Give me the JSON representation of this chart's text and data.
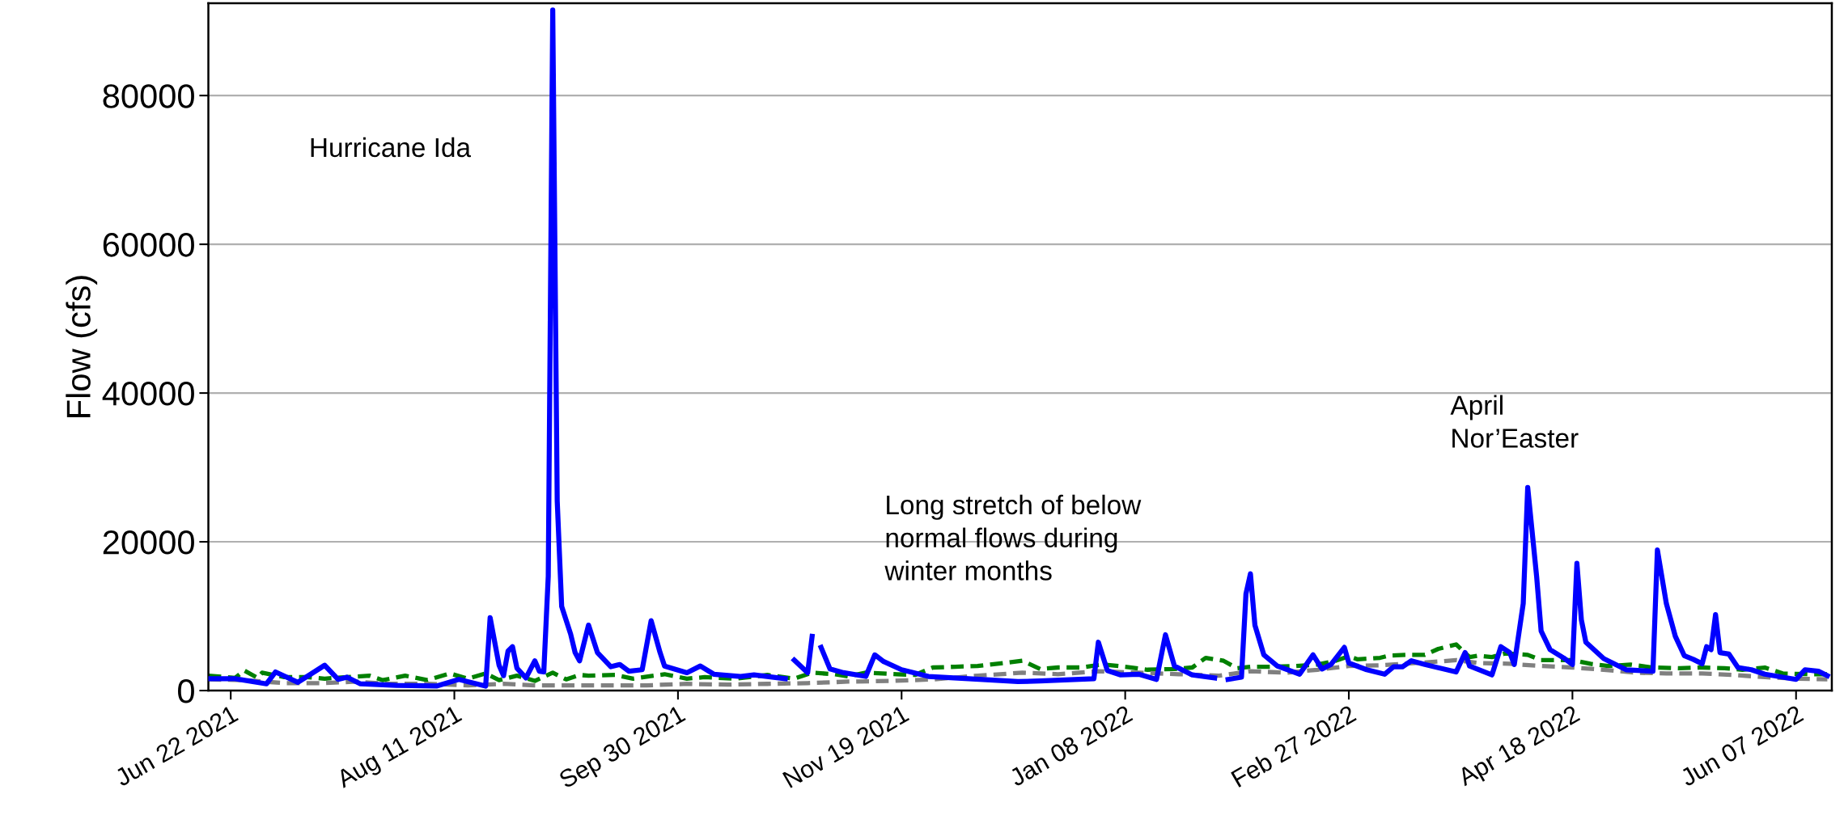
{
  "chart_data": {
    "type": "line",
    "ylabel": "Flow (cfs)",
    "xlim": [
      "2021-06-17",
      "2022-06-15"
    ],
    "ylim": [
      0,
      92400
    ],
    "xticks": [
      {
        "value": "2021-06-22",
        "label": "Jun 22 2021"
      },
      {
        "value": "2021-08-11",
        "label": "Aug 11 2021"
      },
      {
        "value": "2021-09-30",
        "label": "Sep 30 2021"
      },
      {
        "value": "2021-11-19",
        "label": "Nov 19 2021"
      },
      {
        "value": "2022-01-08",
        "label": "Jan 08 2022"
      },
      {
        "value": "2022-02-27",
        "label": "Feb 27 2022"
      },
      {
        "value": "2022-04-18",
        "label": "Apr 18 2022"
      },
      {
        "value": "2022-06-07",
        "label": "Jun 07 2022"
      }
    ],
    "yticks": [
      0,
      20000,
      40000,
      60000,
      80000
    ],
    "grid": "y",
    "marker": "none",
    "series": [
      {
        "color": "#0000ff",
        "line_style": "solid",
        "x": [
          "2021-06-17",
          "2021-06-23",
          "2021-06-30",
          "2021-07-02",
          "2021-07-07",
          "2021-07-13",
          "2021-07-16",
          "2021-07-18",
          "2021-07-21",
          "2021-07-29",
          "2021-08-07",
          "2021-08-12",
          "2021-08-18",
          "2021-08-19",
          "2021-08-21",
          "2021-08-22",
          "2021-08-23",
          "2021-08-24",
          "2021-08-25",
          "2021-08-27",
          "2021-08-29",
          "2021-08-30",
          "2021-08-31",
          "2021-09-01",
          "2021-09-02",
          "2021-09-03",
          "2021-09-04",
          "2021-09-06",
          "2021-09-07",
          "2021-09-08",
          "2021-09-10",
          "2021-09-12",
          "2021-09-15",
          "2021-09-17",
          "2021-09-19",
          "2021-09-22",
          "2021-09-24",
          "2021-09-26",
          "2021-09-27",
          "2021-10-02",
          "2021-10-05",
          "2021-10-08",
          "2021-10-14",
          "2021-10-17",
          "2021-10-24",
          "2021-10-25",
          "2021-10-26",
          "2021-10-29",
          "2021-10-30",
          "2021-10-31",
          "2021-11-01",
          "2021-11-03",
          "2021-11-06",
          "2021-11-11",
          "2021-11-13",
          "2021-11-15",
          "2021-11-19",
          "2021-11-25",
          "2021-12-04",
          "2021-12-15",
          "2021-12-20",
          "2022-01-01",
          "2022-01-02",
          "2022-01-04",
          "2022-01-07",
          "2022-01-11",
          "2022-01-15",
          "2022-01-17",
          "2022-01-19",
          "2022-01-23",
          "2022-01-28",
          "2022-01-30",
          "2022-01-31",
          "2022-02-03",
          "2022-02-04",
          "2022-02-05",
          "2022-02-06",
          "2022-02-08",
          "2022-02-11",
          "2022-02-16",
          "2022-02-19",
          "2022-02-21",
          "2022-02-23",
          "2022-02-26",
          "2022-02-27",
          "2022-03-03",
          "2022-03-07",
          "2022-03-09",
          "2022-03-11",
          "2022-03-13",
          "2022-03-16",
          "2022-03-23",
          "2022-03-25",
          "2022-03-26",
          "2022-03-31",
          "2022-04-02",
          "2022-04-04",
          "2022-04-05",
          "2022-04-07",
          "2022-04-08",
          "2022-04-10",
          "2022-04-11",
          "2022-04-13",
          "2022-04-16",
          "2022-04-18",
          "2022-04-19",
          "2022-04-20",
          "2022-04-21",
          "2022-04-25",
          "2022-04-30",
          "2022-05-06",
          "2022-05-07",
          "2022-05-09",
          "2022-05-11",
          "2022-05-13",
          "2022-05-15",
          "2022-05-17",
          "2022-05-18",
          "2022-05-19",
          "2022-05-20",
          "2022-05-21",
          "2022-05-23",
          "2022-05-25",
          "2022-05-28",
          "2022-05-31",
          "2022-06-07",
          "2022-06-09",
          "2022-06-12",
          "2022-06-14"
        ],
        "values": [
          1600,
          1600,
          900,
          2500,
          1100,
          3400,
          1500,
          1800,
          900,
          700,
          600,
          1500,
          600,
          9800,
          3400,
          2000,
          5300,
          5900,
          3000,
          1700,
          4000,
          2600,
          2500,
          15400,
          91500,
          25500,
          11300,
          7600,
          5100,
          4000,
          8800,
          5100,
          3200,
          3500,
          2600,
          2800,
          9400,
          5100,
          3300,
          2400,
          3300,
          2200,
          1900,
          2100,
          1600,
          null,
          4100,
          2400,
          7300,
          null,
          5800,
          2900,
          2400,
          1900,
          4800,
          3900,
          2800,
          1900,
          1600,
          1200,
          1300,
          1600,
          6500,
          2700,
          2100,
          2200,
          1500,
          7500,
          3300,
          2100,
          1700,
          null,
          1500,
          1800,
          13000,
          15700,
          8800,
          4800,
          3300,
          2200,
          4800,
          2900,
          3500,
          5800,
          3700,
          2800,
          2200,
          3200,
          3200,
          4000,
          3500,
          2500,
          5100,
          3300,
          2100,
          5900,
          5100,
          3500,
          11700,
          27300,
          15300,
          8000,
          5500,
          4400,
          3500,
          17100,
          9500,
          6500,
          4300,
          2800,
          2600,
          18900,
          11700,
          7300,
          4700,
          4200,
          3600,
          5900,
          5500,
          10200,
          5100,
          4900,
          3100,
          2800,
          2200,
          1500,
          2800,
          2600,
          2000
        ]
      },
      {
        "color": "#008000",
        "line_style": "dashed",
        "x": [
          "2021-06-17",
          "2021-06-23",
          "2021-06-25",
          "2021-06-28",
          "2021-06-29",
          "2021-07-04",
          "2021-07-09",
          "2021-07-13",
          "2021-07-18",
          "2021-07-23",
          "2021-07-26",
          "2021-07-31",
          "2021-08-05",
          "2021-08-10",
          "2021-08-14",
          "2021-08-18",
          "2021-08-21",
          "2021-08-25",
          "2021-08-29",
          "2021-09-02",
          "2021-09-05",
          "2021-09-08",
          "2021-09-10",
          "2021-09-16",
          "2021-09-20",
          "2021-09-27",
          "2021-10-02",
          "2021-10-06",
          "2021-10-13",
          "2021-10-20",
          "2021-10-26",
          "2021-10-30",
          "2021-11-04",
          "2021-11-07",
          "2021-11-11",
          "2021-11-18",
          "2021-11-22",
          "2021-11-26",
          "2021-12-01",
          "2021-12-06",
          "2021-12-12",
          "2021-12-16",
          "2021-12-20",
          "2021-12-24",
          "2021-12-29",
          "2022-01-03",
          "2022-01-08",
          "2022-01-13",
          "2022-01-19",
          "2022-01-23",
          "2022-01-26",
          "2022-01-30",
          "2022-02-02",
          "2022-02-05",
          "2022-02-09",
          "2022-02-15",
          "2022-02-20",
          "2022-02-24",
          "2022-02-27",
          "2022-03-01",
          "2022-03-06",
          "2022-03-08",
          "2022-03-12",
          "2022-03-16",
          "2022-03-19",
          "2022-03-23",
          "2022-03-26",
          "2022-03-28",
          "2022-03-31",
          "2022-04-03",
          "2022-04-08",
          "2022-04-11",
          "2022-04-15",
          "2022-04-18",
          "2022-04-22",
          "2022-04-26",
          "2022-05-01",
          "2022-05-06",
          "2022-05-12",
          "2022-05-17",
          "2022-05-22",
          "2022-05-26",
          "2022-05-31",
          "2022-06-04",
          "2022-06-10",
          "2022-06-14"
        ],
        "values": [
          2000,
          1700,
          2700,
          1700,
          2400,
          1800,
          1800,
          1600,
          1800,
          2000,
          1400,
          2000,
          1400,
          2300,
          1600,
          2300,
          1400,
          2000,
          1300,
          2400,
          1500,
          2100,
          2000,
          2100,
          1600,
          2200,
          1600,
          1800,
          1600,
          2100,
          1600,
          2400,
          2200,
          1900,
          2400,
          2200,
          2100,
          3100,
          3200,
          3300,
          3700,
          4000,
          2900,
          3100,
          3100,
          3500,
          3200,
          2800,
          2900,
          3100,
          4400,
          4000,
          3000,
          3200,
          3200,
          3300,
          3500,
          4000,
          4600,
          4200,
          4400,
          4700,
          4800,
          4800,
          5600,
          6200,
          4500,
          4700,
          4500,
          5000,
          4800,
          4100,
          4100,
          4100,
          3600,
          3300,
          3500,
          3100,
          3000,
          3100,
          3000,
          2800,
          3100,
          2300,
          2200,
          2200
        ]
      },
      {
        "color": "#808080",
        "line_style": "dashed",
        "x": [
          "2021-06-17",
          "2021-06-25",
          "2021-07-04",
          "2021-07-13",
          "2021-07-20",
          "2021-07-27",
          "2021-08-05",
          "2021-08-14",
          "2021-08-22",
          "2021-08-29",
          "2021-09-08",
          "2021-09-14",
          "2021-09-23",
          "2021-10-02",
          "2021-10-11",
          "2021-10-20",
          "2021-10-29",
          "2021-11-07",
          "2021-11-17",
          "2021-11-26",
          "2021-12-06",
          "2021-12-16",
          "2021-12-24",
          "2022-01-02",
          "2022-01-11",
          "2022-01-20",
          "2022-01-29",
          "2022-02-05",
          "2022-02-13",
          "2022-02-20",
          "2022-02-27",
          "2022-03-06",
          "2022-03-14",
          "2022-03-19",
          "2022-03-23",
          "2022-03-28",
          "2022-04-04",
          "2022-04-11",
          "2022-04-18",
          "2022-04-25",
          "2022-05-02",
          "2022-05-09",
          "2022-05-17",
          "2022-05-24",
          "2022-05-31",
          "2022-06-07",
          "2022-06-14"
        ],
        "values": [
          1500,
          1400,
          1000,
          1000,
          1200,
          900,
          900,
          700,
          900,
          700,
          700,
          700,
          700,
          900,
          800,
          900,
          1000,
          1200,
          1300,
          1500,
          2000,
          2400,
          2200,
          2600,
          2400,
          2200,
          2000,
          2600,
          2400,
          2800,
          3300,
          3400,
          3700,
          3900,
          4100,
          3700,
          3600,
          3300,
          3100,
          2800,
          2400,
          2300,
          2300,
          2100,
          1800,
          1600,
          1500
        ]
      }
    ],
    "annotations": [
      "Hurricane Ida",
      "Long stretch of below\nnormal flows during\nwinter months",
      "April\nNor’Easter"
    ]
  }
}
